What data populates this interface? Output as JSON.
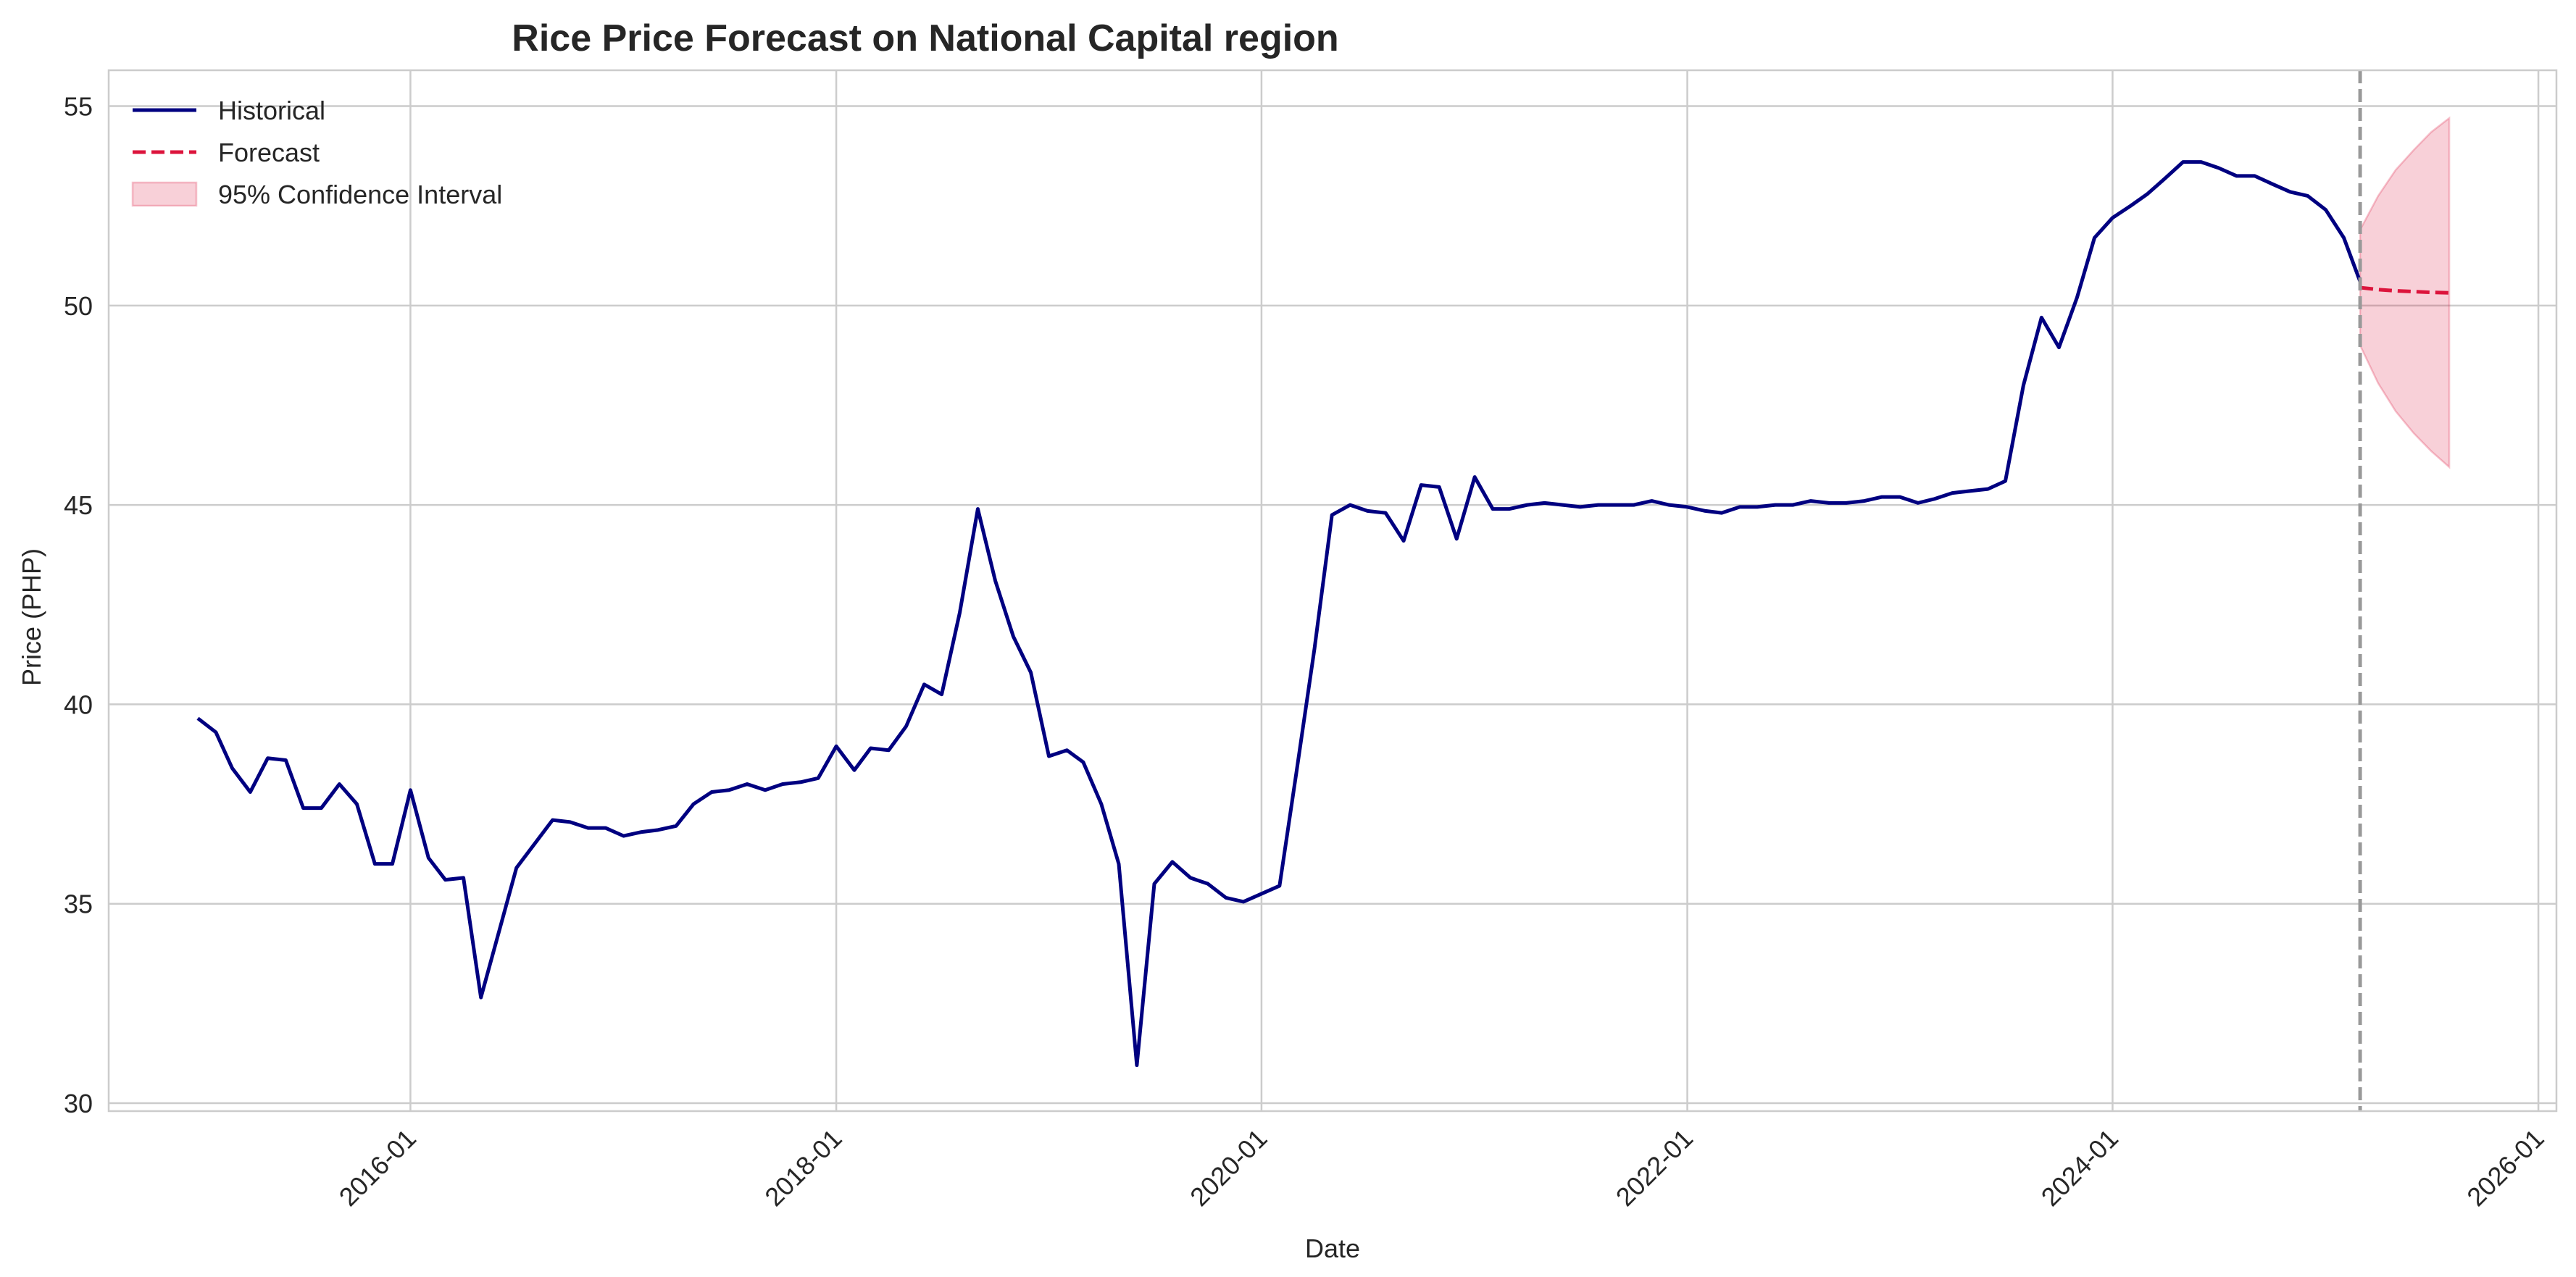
{
  "chart_data": {
    "type": "line",
    "title": "Rice Price Forecast on National Capital region",
    "xlabel": "Date",
    "ylabel": "Price (PHP)",
    "x_axis": {
      "type": "date",
      "range": [
        "2014-08-01",
        "2026-02-01"
      ],
      "ticks": [
        "2016-01",
        "2018-01",
        "2020-01",
        "2022-01",
        "2024-01",
        "2026-01"
      ]
    },
    "y_axis": {
      "range": [
        29.8,
        55.9
      ],
      "ticks": [
        30,
        35,
        40,
        45,
        50,
        55
      ]
    },
    "grid": true,
    "legend": {
      "position": "top-left",
      "entries": [
        "Historical",
        "Forecast",
        "95% Confidence Interval"
      ]
    },
    "colors": {
      "historical": "#000080",
      "forecast": "#dc143c",
      "confidence": "#dc143c",
      "divider": "#999999",
      "grid": "#cccccc"
    },
    "forecast_start_marker": "2025-03-01",
    "series": [
      {
        "name": "Historical",
        "style": "solid",
        "x": [
          "2015-01-01",
          "2015-02-01",
          "2015-03-01",
          "2015-04-01",
          "2015-05-01",
          "2015-06-01",
          "2015-07-01",
          "2015-08-01",
          "2015-09-01",
          "2015-10-01",
          "2015-11-01",
          "2015-12-01",
          "2016-01-01",
          "2016-02-01",
          "2016-03-01",
          "2016-04-01",
          "2016-05-01",
          "2016-06-01",
          "2016-07-01",
          "2016-08-01",
          "2016-09-01",
          "2016-10-01",
          "2016-11-01",
          "2016-12-01",
          "2017-01-01",
          "2017-02-01",
          "2017-03-01",
          "2017-04-01",
          "2017-05-01",
          "2017-06-01",
          "2017-07-01",
          "2017-08-01",
          "2017-09-01",
          "2017-10-01",
          "2017-11-01",
          "2017-12-01",
          "2018-01-01",
          "2018-02-01",
          "2018-03-01",
          "2018-04-01",
          "2018-05-01",
          "2018-06-01",
          "2018-07-01",
          "2018-08-01",
          "2018-09-01",
          "2018-10-01",
          "2018-11-01",
          "2018-12-01",
          "2019-01-01",
          "2019-02-01",
          "2019-03-01",
          "2019-04-01",
          "2019-05-01",
          "2019-06-01",
          "2019-07-01",
          "2019-08-01",
          "2019-09-01",
          "2019-10-01",
          "2019-11-01",
          "2019-12-01",
          "2020-01-01",
          "2020-02-01",
          "2020-03-01",
          "2020-04-01",
          "2020-05-01",
          "2020-06-01",
          "2020-07-01",
          "2020-08-01",
          "2020-09-01",
          "2020-10-01",
          "2020-11-01",
          "2020-12-01",
          "2021-01-01",
          "2021-02-01",
          "2021-03-01",
          "2021-04-01",
          "2021-05-01",
          "2021-06-01",
          "2021-07-01",
          "2021-08-01",
          "2021-09-01",
          "2021-10-01",
          "2021-11-01",
          "2021-12-01",
          "2022-01-01",
          "2022-02-01",
          "2022-03-01",
          "2022-04-01",
          "2022-05-01",
          "2022-06-01",
          "2022-07-01",
          "2022-08-01",
          "2022-09-01",
          "2022-10-01",
          "2022-11-01",
          "2022-12-01",
          "2023-01-01",
          "2023-02-01",
          "2023-03-01",
          "2023-04-01",
          "2023-05-01",
          "2023-06-01",
          "2023-07-01",
          "2023-08-01",
          "2023-09-01",
          "2023-10-01",
          "2023-11-01",
          "2023-12-01",
          "2024-01-01",
          "2024-02-01",
          "2024-03-01",
          "2024-04-01",
          "2024-05-01",
          "2024-06-01",
          "2024-07-01",
          "2024-08-01",
          "2024-09-01",
          "2024-10-01",
          "2024-11-01",
          "2024-12-01",
          "2025-01-01",
          "2025-02-01",
          "2025-03-01"
        ],
        "y": [
          39.65,
          39.3,
          38.4,
          37.8,
          38.65,
          38.6,
          37.4,
          37.4,
          38.0,
          37.5,
          36.0,
          36.0,
          37.85,
          36.15,
          35.6,
          35.65,
          32.65,
          34.3,
          35.9,
          36.5,
          37.1,
          37.05,
          36.9,
          36.9,
          36.7,
          36.8,
          36.85,
          36.95,
          37.5,
          37.8,
          37.85,
          38.0,
          37.85,
          38.0,
          38.05,
          38.15,
          38.95,
          38.35,
          38.9,
          38.85,
          39.45,
          40.5,
          40.25,
          42.3,
          44.9,
          43.1,
          41.7,
          40.8,
          38.7,
          38.85,
          38.55,
          37.5,
          36.0,
          30.95,
          35.5,
          36.05,
          35.65,
          35.5,
          35.15,
          35.05,
          35.25,
          35.45,
          38.3,
          41.4,
          44.75,
          45.0,
          44.85,
          44.8,
          44.1,
          45.5,
          45.45,
          44.15,
          45.7,
          44.9,
          44.9,
          45.0,
          45.05,
          45.0,
          44.95,
          45.0,
          45.0,
          45.0,
          45.1,
          45.0,
          44.95,
          44.85,
          44.8,
          44.95,
          44.95,
          45.0,
          45.0,
          45.1,
          45.05,
          45.05,
          45.1,
          45.2,
          45.2,
          45.05,
          45.15,
          45.3,
          45.35,
          45.4,
          45.6,
          48.0,
          49.7,
          48.95,
          50.2,
          51.7,
          52.2,
          52.5,
          52.8,
          53.2,
          53.6,
          53.6,
          53.45,
          53.25,
          53.25,
          53.05,
          52.85,
          52.75,
          52.4,
          51.7,
          50.6
        ]
      },
      {
        "name": "Forecast",
        "style": "dashed",
        "x": [
          "2025-03-01",
          "2025-04-01",
          "2025-05-01",
          "2025-06-01",
          "2025-07-01",
          "2025-08-01"
        ],
        "y": [
          50.45,
          50.4,
          50.37,
          50.35,
          50.33,
          50.32
        ]
      },
      {
        "name": "95% Confidence Interval",
        "style": "band",
        "x": [
          "2025-03-01",
          "2025-04-01",
          "2025-05-01",
          "2025-06-01",
          "2025-07-01",
          "2025-08-01"
        ],
        "lower": [
          49.0,
          48.05,
          47.35,
          46.8,
          46.35,
          45.95
        ],
        "upper": [
          51.9,
          52.75,
          53.4,
          53.9,
          54.35,
          54.7
        ]
      }
    ]
  }
}
